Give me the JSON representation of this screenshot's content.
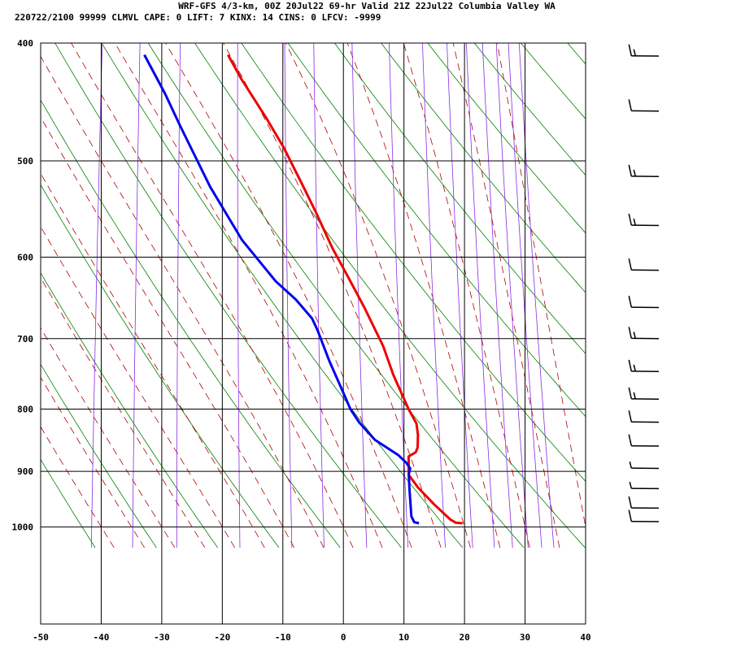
{
  "header": {
    "line1": "WRF-GFS 4/3-km, 00Z 20Jul22 69-hr Valid 21Z 22Jul22 Columbia Valley WA",
    "line2": "220722/2100 99999  CLMVL   CAPE:     0 LIFT:     7 KINX:    14 CINS:     0 LFCV: -9999"
  },
  "colors": {
    "temperature": "#ee0000",
    "dewpoint": "#0000ee",
    "dry_adiabat": "#008000",
    "moist_adiabat": "#b00000",
    "mixing_ratio": "#8a2be2",
    "grid": "#000000",
    "wind_barb": "#000000"
  },
  "chart_data": {
    "type": "line",
    "title": "",
    "xlabel": "",
    "ylabel": "",
    "x_ticks": [
      "-50",
      "-40",
      "-30",
      "-20",
      "-10",
      "0",
      "10",
      "20",
      "30",
      "40"
    ],
    "y_ticks": [
      "400",
      "500",
      "600",
      "700",
      "800",
      "900",
      "1000"
    ],
    "xlim": [
      -50,
      40
    ],
    "y_log_pressure": true,
    "ylim": [
      1040,
      400
    ],
    "grid": true,
    "series": [
      {
        "key": "temperature",
        "values_xy": [
          [
            19.6,
            993
          ],
          [
            18.5,
            992
          ],
          [
            17.5,
            986
          ],
          [
            14.5,
            958
          ],
          [
            11.5,
            928
          ],
          [
            9.7,
            906
          ],
          [
            9.5,
            890
          ],
          [
            9.3,
            875
          ],
          [
            10.4,
            868
          ],
          [
            10.6,
            860
          ],
          [
            10.4,
            840
          ],
          [
            9.9,
            822
          ],
          [
            8.3,
            800
          ],
          [
            5.1,
            750
          ],
          [
            2.8,
            710
          ],
          [
            -1.1,
            660
          ],
          [
            -4.7,
            620
          ],
          [
            -7.6,
            590
          ],
          [
            -11.2,
            550
          ],
          [
            -13.7,
            525
          ],
          [
            -17.7,
            488
          ],
          [
            -21.1,
            462
          ],
          [
            -26.2,
            428
          ],
          [
            -28.9,
            409
          ]
        ]
      },
      {
        "key": "dewpoint",
        "values_xy": [
          [
            12.4,
            993
          ],
          [
            11.6,
            991
          ],
          [
            11.0,
            980
          ],
          [
            10.1,
            930
          ],
          [
            9.7,
            905
          ],
          [
            9.8,
            895
          ],
          [
            9.0,
            885
          ],
          [
            7.6,
            873
          ],
          [
            3.4,
            848
          ],
          [
            0.4,
            820
          ],
          [
            -1.3,
            800
          ],
          [
            -2.4,
            782
          ],
          [
            -5.8,
            730
          ],
          [
            -8.3,
            690
          ],
          [
            -9.5,
            674
          ],
          [
            -12.6,
            650
          ],
          [
            -16.3,
            628
          ],
          [
            -22.7,
            581
          ],
          [
            -29.1,
            525
          ],
          [
            -31.2,
            505
          ],
          [
            -35.3,
            468
          ],
          [
            -38.5,
            440
          ],
          [
            -42.7,
            409
          ]
        ]
      }
    ],
    "wind_barbs": [
      {
        "p": 410,
        "spd": 15
      },
      {
        "p": 455,
        "spd": 10
      },
      {
        "p": 515,
        "spd": 15
      },
      {
        "p": 565,
        "spd": 15
      },
      {
        "p": 615,
        "spd": 10
      },
      {
        "p": 660,
        "spd": 10
      },
      {
        "p": 700,
        "spd": 15
      },
      {
        "p": 745,
        "spd": 15
      },
      {
        "p": 785,
        "spd": 15
      },
      {
        "p": 820,
        "spd": 10
      },
      {
        "p": 858,
        "spd": 10
      },
      {
        "p": 895,
        "spd": 5
      },
      {
        "p": 930,
        "spd": 5
      },
      {
        "p": 965,
        "spd": 10
      },
      {
        "p": 990,
        "spd": 10
      }
    ]
  }
}
